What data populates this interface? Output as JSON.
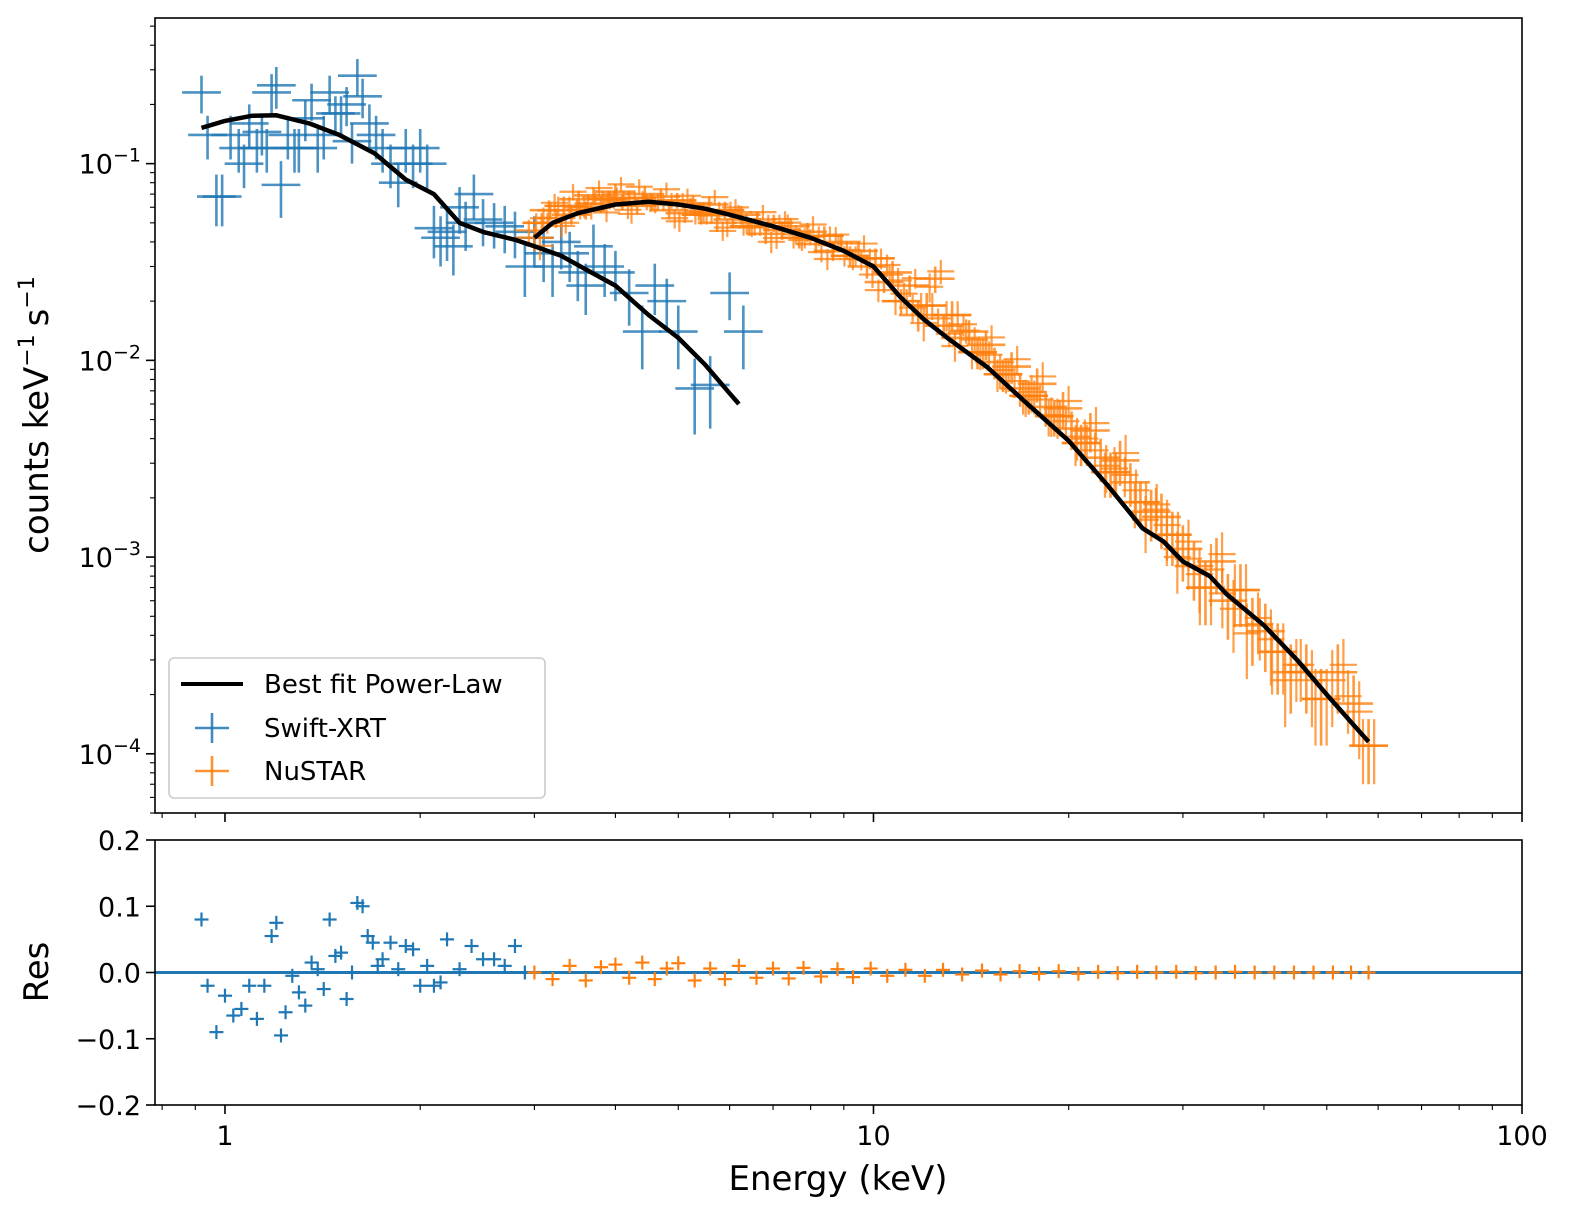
{
  "colors": {
    "swift": "#1f77b4",
    "nustar": "#ff7f0e",
    "model": "#000000",
    "background": "#ffffff"
  },
  "chart_data": [
    {
      "panel": "spectrum",
      "type": "scatter",
      "title": "",
      "xlabel": "",
      "ylabel": "counts keV",
      "ylabel_unit": "s",
      "ylabel_exponent": "−1",
      "xscale": "log",
      "yscale": "log",
      "xlim": [
        0.78,
        100
      ],
      "ylim": [
        5e-05,
        0.55
      ],
      "ytick_values": [
        0.0001,
        0.001,
        0.01,
        0.1
      ],
      "ytick_labels": [
        {
          "base": "10",
          "exp": "−4"
        },
        {
          "base": "10",
          "exp": "−3"
        },
        {
          "base": "10",
          "exp": "−2"
        },
        {
          "base": "10",
          "exp": "−1"
        }
      ],
      "legend": {
        "position": "lower-left",
        "entries": [
          "Best fit Power-Law",
          "Swift-XRT",
          "NuSTAR"
        ]
      },
      "model": {
        "name": "Best fit Power-Law",
        "segments": [
          {
            "instrument": "Swift-XRT",
            "x": [
              0.92,
              1.0,
              1.1,
              1.2,
              1.35,
              1.5,
              1.7,
              1.9,
              2.1,
              2.3,
              2.5,
              2.8,
              3.0,
              3.3,
              3.6,
              4.0,
              4.5,
              5.0,
              5.5,
              6.0,
              6.2
            ],
            "y": [
              0.152,
              0.165,
              0.175,
              0.176,
              0.16,
              0.14,
              0.113,
              0.083,
              0.07,
              0.05,
              0.045,
              0.041,
              0.038,
              0.034,
              0.029,
              0.024,
              0.017,
              0.013,
              0.0095,
              0.0068,
              0.006
            ]
          },
          {
            "instrument": "NuSTAR",
            "x": [
              3.0,
              3.2,
              3.5,
              4.0,
              4.5,
              5.0,
              5.5,
              6.0,
              7.0,
              8.0,
              9.0,
              10.0,
              11.0,
              12.0,
              13.0,
              15.0,
              17.0,
              20.0,
              23.0,
              26.0,
              28.0,
              30.0,
              33.0,
              35.0,
              40.0,
              45.0,
              50.0,
              55.0,
              58.0
            ],
            "y": [
              0.042,
              0.05,
              0.056,
              0.062,
              0.064,
              0.062,
              0.059,
              0.055,
              0.048,
              0.042,
              0.036,
              0.03,
              0.021,
              0.016,
              0.013,
              0.0092,
              0.0063,
              0.0039,
              0.0023,
              0.0014,
              0.0012,
              0.00095,
              0.0008,
              0.00065,
              0.00045,
              0.0003,
              0.0002,
              0.00014,
              0.000115
            ]
          }
        ]
      },
      "series": [
        {
          "name": "Swift-XRT",
          "x": [
            0.92,
            0.94,
            0.97,
            0.99,
            1.02,
            1.05,
            1.07,
            1.09,
            1.12,
            1.14,
            1.16,
            1.18,
            1.2,
            1.22,
            1.25,
            1.28,
            1.3,
            1.33,
            1.36,
            1.39,
            1.42,
            1.45,
            1.48,
            1.51,
            1.54,
            1.57,
            1.6,
            1.63,
            1.67,
            1.71,
            1.75,
            1.8,
            1.85,
            1.9,
            1.95,
            2.0,
            2.05,
            2.1,
            2.15,
            2.2,
            2.25,
            2.3,
            2.35,
            2.42,
            2.5,
            2.6,
            2.7,
            2.8,
            2.9,
            3.0,
            3.1,
            3.2,
            3.3,
            3.4,
            3.5,
            3.6,
            3.7,
            3.85,
            4.0,
            4.2,
            4.4,
            4.6,
            4.8,
            5.0,
            5.3,
            5.6,
            6.0,
            6.3
          ],
          "y": [
            0.23,
            0.14,
            0.068,
            0.068,
            0.14,
            0.12,
            0.1,
            0.16,
            0.12,
            0.145,
            0.12,
            0.23,
            0.25,
            0.078,
            0.14,
            0.12,
            0.12,
            0.17,
            0.21,
            0.12,
            0.14,
            0.23,
            0.18,
            0.18,
            0.2,
            0.13,
            0.28,
            0.22,
            0.16,
            0.14,
            0.12,
            0.1,
            0.08,
            0.12,
            0.1,
            0.12,
            0.1,
            0.047,
            0.042,
            0.045,
            0.038,
            0.06,
            0.05,
            0.07,
            0.052,
            0.05,
            0.048,
            0.045,
            0.03,
            0.042,
            0.035,
            0.03,
            0.04,
            0.035,
            0.028,
            0.024,
            0.038,
            0.03,
            0.028,
            0.022,
            0.014,
            0.024,
            0.02,
            0.014,
            0.0072,
            0.0075,
            0.022,
            0.014
          ],
          "yerr": [
            0.05,
            0.035,
            0.02,
            0.02,
            0.035,
            0.03,
            0.025,
            0.04,
            0.03,
            0.035,
            0.03,
            0.055,
            0.06,
            0.025,
            0.035,
            0.03,
            0.03,
            0.04,
            0.045,
            0.03,
            0.035,
            0.05,
            0.04,
            0.04,
            0.045,
            0.03,
            0.06,
            0.05,
            0.04,
            0.035,
            0.03,
            0.025,
            0.02,
            0.03,
            0.025,
            0.03,
            0.025,
            0.014,
            0.012,
            0.013,
            0.011,
            0.016,
            0.014,
            0.018,
            0.014,
            0.013,
            0.013,
            0.012,
            0.009,
            0.012,
            0.01,
            0.009,
            0.011,
            0.01,
            0.008,
            0.007,
            0.011,
            0.009,
            0.008,
            0.007,
            0.005,
            0.007,
            0.006,
            0.005,
            0.003,
            0.003,
            0.006,
            0.005
          ]
        },
        {
          "name": "NuSTAR",
          "note_scatter": 0.09,
          "x": [
            3.0,
            3.08,
            3.16,
            3.24,
            3.33,
            3.42,
            3.51,
            3.6,
            3.7,
            3.8,
            3.9,
            4.0,
            4.1,
            4.2,
            4.32,
            4.44,
            4.56,
            4.7,
            4.84,
            4.98,
            5.12,
            5.27,
            5.42,
            5.58,
            5.74,
            5.9,
            6.07,
            6.25,
            6.43,
            6.62,
            6.82,
            7.02,
            7.23,
            7.45,
            7.68,
            7.91,
            8.15,
            8.4,
            8.66,
            8.92,
            9.2,
            9.48,
            9.77,
            10.07,
            10.38,
            10.7,
            11.03,
            11.37,
            11.72,
            12.08,
            12.45,
            12.83,
            13.22,
            13.62,
            14.04,
            14.47,
            14.91,
            15.37,
            15.84,
            16.33,
            16.83,
            17.35,
            17.88,
            18.43,
            19.0,
            19.6,
            20.2,
            20.9,
            21.6,
            22.4,
            23.2,
            24.0,
            24.9,
            25.8,
            26.8,
            27.8,
            28.9,
            30.0,
            31.2,
            32.5,
            33.8,
            35.2,
            36.8,
            38.4,
            40.2,
            42.0,
            44.0,
            46.5,
            49.0,
            52.0,
            55.0,
            58.0
          ],
          "y": [
            0.042,
            0.05,
            0.058,
            0.053,
            0.061,
            0.055,
            0.066,
            0.058,
            0.069,
            0.062,
            0.066,
            0.072,
            0.064,
            0.067,
            0.061,
            0.07,
            0.064,
            0.068,
            0.058,
            0.065,
            0.056,
            0.063,
            0.055,
            0.062,
            0.05,
            0.058,
            0.052,
            0.055,
            0.048,
            0.052,
            0.044,
            0.05,
            0.046,
            0.048,
            0.042,
            0.045,
            0.039,
            0.043,
            0.036,
            0.04,
            0.034,
            0.036,
            0.03,
            0.033,
            0.025,
            0.028,
            0.02,
            0.024,
            0.017,
            0.019,
            0.026,
            0.015,
            0.017,
            0.013,
            0.014,
            0.011,
            0.012,
            0.0098,
            0.0085,
            0.0093,
            0.0072,
            0.0066,
            0.0076,
            0.0058,
            0.0052,
            0.0057,
            0.0045,
            0.0038,
            0.0044,
            0.0032,
            0.0027,
            0.0031,
            0.0024,
            0.0019,
            0.0017,
            0.0016,
            0.0013,
            0.0011,
            0.0009,
            0.0007,
            0.00095,
            0.0006,
            0.00068,
            0.00045,
            0.00042,
            0.00033,
            0.00026,
            0.00026,
            0.00019,
            0.00026,
            0.00018,
            0.00011
          ],
          "yerr": [
            0.006,
            0.006,
            0.007,
            0.006,
            0.007,
            0.006,
            0.007,
            0.006,
            0.007,
            0.006,
            0.007,
            0.007,
            0.006,
            0.006,
            0.006,
            0.007,
            0.006,
            0.006,
            0.006,
            0.006,
            0.006,
            0.006,
            0.006,
            0.006,
            0.005,
            0.006,
            0.005,
            0.006,
            0.005,
            0.005,
            0.005,
            0.005,
            0.005,
            0.005,
            0.005,
            0.005,
            0.004,
            0.005,
            0.004,
            0.004,
            0.004,
            0.004,
            0.004,
            0.004,
            0.003,
            0.004,
            0.003,
            0.003,
            0.003,
            0.003,
            0.004,
            0.002,
            0.003,
            0.002,
            0.002,
            0.002,
            0.002,
            0.0018,
            0.0016,
            0.0017,
            0.0014,
            0.0013,
            0.0015,
            0.0012,
            0.0011,
            0.0012,
            0.001,
            0.0009,
            0.001,
            0.0008,
            0.0007,
            0.0008,
            0.0006,
            0.0005,
            0.0005,
            0.0005,
            0.0004,
            0.00035,
            0.0003,
            0.00025,
            0.0003,
            0.00022,
            0.00024,
            0.00017,
            0.00016,
            0.00013,
            0.0001,
            0.0001,
            8e-05,
            0.0001,
            7e-05,
            4e-05
          ]
        }
      ]
    },
    {
      "panel": "residuals",
      "type": "scatter",
      "xlabel": "Energy (keV)",
      "ylabel": "Res",
      "xscale": "log",
      "yscale": "linear",
      "xlim": [
        0.78,
        100
      ],
      "ylim": [
        -0.2,
        0.2
      ],
      "xtick_values": [
        1,
        10,
        100
      ],
      "xtick_labels": [
        "1",
        "10",
        "100"
      ],
      "ytick_values": [
        -0.2,
        -0.1,
        0.0,
        0.1,
        0.2
      ],
      "ytick_labels": [
        "−0.2",
        "−0.1",
        "0.0",
        "0.1",
        "0.2"
      ],
      "zero_line": 0.0,
      "series": [
        {
          "name": "Swift-XRT",
          "x": [
            0.92,
            0.94,
            0.97,
            1.0,
            1.03,
            1.06,
            1.09,
            1.12,
            1.15,
            1.18,
            1.2,
            1.22,
            1.24,
            1.27,
            1.3,
            1.33,
            1.36,
            1.39,
            1.42,
            1.45,
            1.48,
            1.51,
            1.54,
            1.57,
            1.6,
            1.63,
            1.66,
            1.69,
            1.72,
            1.75,
            1.8,
            1.85,
            1.9,
            1.95,
            2.0,
            2.05,
            2.1,
            2.15,
            2.2,
            2.3,
            2.4,
            2.5,
            2.6,
            2.7,
            2.8,
            2.9
          ],
          "y": [
            0.08,
            -0.02,
            -0.09,
            -0.035,
            -0.065,
            -0.055,
            -0.02,
            -0.07,
            -0.02,
            0.055,
            0.075,
            -0.095,
            -0.06,
            -0.005,
            -0.03,
            -0.05,
            0.015,
            0.005,
            -0.025,
            0.08,
            0.025,
            0.03,
            -0.04,
            0.0,
            0.105,
            0.1,
            0.055,
            0.045,
            0.01,
            0.02,
            0.045,
            0.005,
            0.04,
            0.035,
            -0.02,
            0.01,
            -0.02,
            -0.015,
            0.05,
            0.005,
            0.04,
            0.02,
            0.02,
            0.01,
            0.04,
            0.0
          ]
        },
        {
          "name": "NuSTAR",
          "x": [
            3.0,
            3.2,
            3.4,
            3.6,
            3.8,
            4.0,
            4.2,
            4.4,
            4.6,
            4.8,
            5.0,
            5.3,
            5.6,
            5.9,
            6.2,
            6.6,
            7.0,
            7.4,
            7.8,
            8.3,
            8.8,
            9.3,
            9.9,
            10.5,
            11.2,
            12.0,
            12.8,
            13.7,
            14.7,
            15.7,
            16.8,
            18.0,
            19.3,
            20.7,
            22.2,
            23.8,
            25.5,
            27.3,
            29.3,
            31.4,
            33.7,
            36.1,
            38.7,
            41.5,
            44.5,
            47.7,
            51.1,
            54.5,
            58.0
          ],
          "y": [
            0.0,
            -0.01,
            0.01,
            -0.012,
            0.008,
            0.012,
            -0.008,
            0.015,
            -0.01,
            0.006,
            0.014,
            -0.012,
            0.006,
            -0.01,
            0.01,
            -0.008,
            0.006,
            -0.009,
            0.007,
            -0.006,
            0.005,
            -0.007,
            0.006,
            -0.005,
            0.004,
            -0.005,
            0.004,
            -0.003,
            0.003,
            -0.003,
            0.002,
            -0.002,
            0.002,
            -0.002,
            0.001,
            -0.001,
            0.001,
            0.0,
            0.001,
            -0.001,
            0.0,
            0.001,
            0.0,
            0.0,
            0.0,
            0.0,
            0.0,
            0.0,
            0.0
          ]
        }
      ]
    }
  ]
}
